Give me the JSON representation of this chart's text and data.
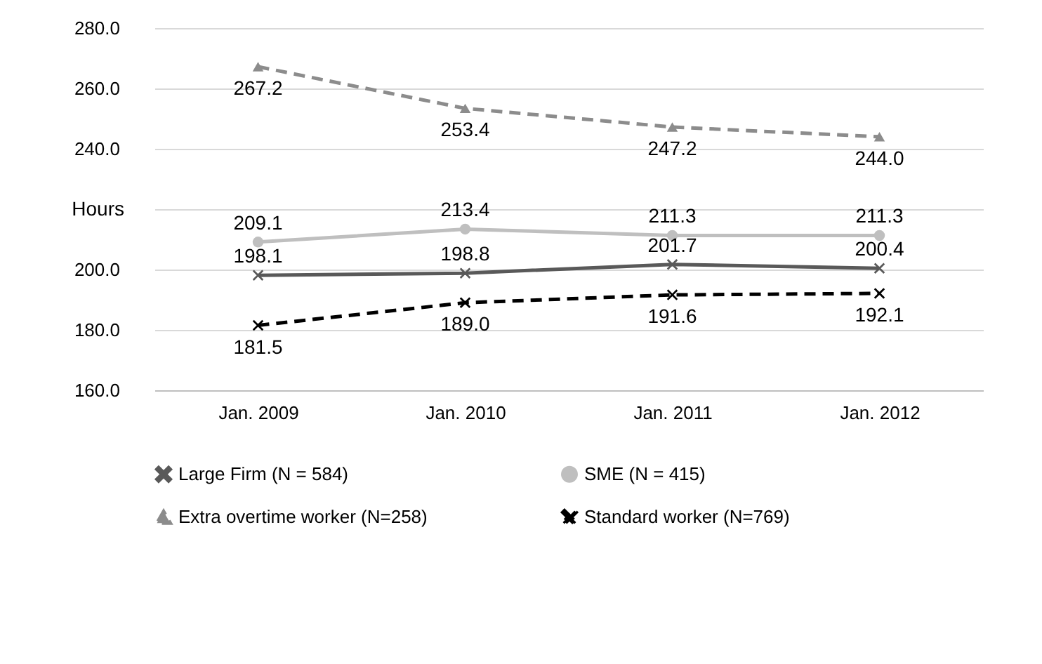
{
  "chart_data": {
    "type": "line",
    "ylabel": "Hours",
    "categories": [
      "Jan. 2009",
      "Jan. 2010",
      "Jan. 2011",
      "Jan. 2012"
    ],
    "ylim": [
      160,
      280
    ],
    "yticks": [
      {
        "value": 160,
        "label": "160.0"
      },
      {
        "value": 180,
        "label": "180.0"
      },
      {
        "value": 200,
        "label": "200.0"
      },
      {
        "value": 220,
        "label": null
      },
      {
        "value": 240,
        "label": "240.0"
      },
      {
        "value": 260,
        "label": "260.0"
      },
      {
        "value": 280,
        "label": "280.0"
      }
    ],
    "grid": "y",
    "legend": "bottom",
    "series": [
      {
        "name": "Large Firm (N = 584)",
        "color": "#595959",
        "marker": "cross",
        "line_style": "solid",
        "values": [
          198.1,
          198.8,
          201.7,
          200.4
        ],
        "value_labels": [
          "198.1",
          "198.8",
          "201.7",
          "200.4"
        ]
      },
      {
        "name": "SME (N = 415)",
        "color": "#bfbfbf",
        "marker": "circle",
        "line_style": "solid",
        "values": [
          209.1,
          213.4,
          211.3,
          211.3
        ],
        "value_labels": [
          "209.1",
          "213.4",
          "211.3",
          "211.3"
        ]
      },
      {
        "name": "Extra overtime worker (N=258)",
        "color": "#8c8c8c",
        "marker": "triangle",
        "line_style": "dashed",
        "values": [
          267.2,
          253.4,
          247.2,
          244.0
        ],
        "value_labels": [
          "267.2",
          "253.4",
          "247.2",
          "244.0"
        ]
      },
      {
        "name": "Standard worker (N=769)",
        "color": "#000000",
        "marker": "cross",
        "line_style": "dashed",
        "values": [
          181.5,
          189.0,
          191.6,
          192.1
        ],
        "value_labels": [
          "181.5",
          "189.0",
          "191.6",
          "192.1"
        ]
      }
    ]
  }
}
